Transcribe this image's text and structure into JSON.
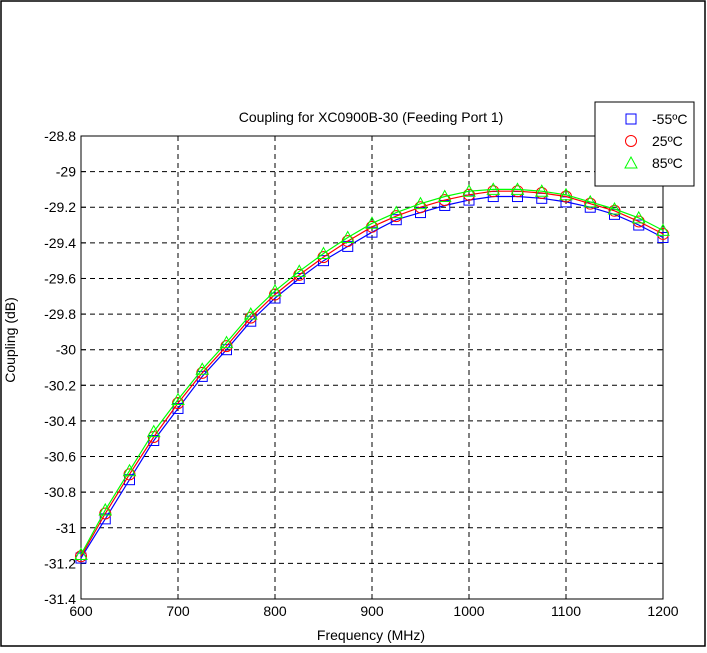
{
  "chart_data": {
    "type": "line",
    "title": "Coupling for XC0900B-30 (Feeding Port 1)",
    "xlabel": "Frequency (MHz)",
    "ylabel": "Coupling (dB)",
    "xlim": [
      600,
      1200
    ],
    "ylim": [
      -31.4,
      -28.8
    ],
    "x_ticks": [
      600,
      700,
      800,
      900,
      1000,
      1100,
      1200
    ],
    "x_tick_labels": [
      "600",
      "700",
      "800",
      "900",
      "1000",
      "1100",
      "1200"
    ],
    "y_ticks": [
      -28.8,
      -29,
      -29.2,
      -29.4,
      -29.6,
      -29.8,
      -30,
      -30.2,
      -30.4,
      -30.6,
      -30.8,
      -31,
      -31.2,
      -31.4
    ],
    "y_tick_labels": [
      "-28.8",
      "-29",
      "-29.2",
      "-29.4",
      "-29.6",
      "-29.8",
      "-30",
      "-30.2",
      "-30.4",
      "-30.6",
      "-30.8",
      "-31",
      "-31.2",
      "-31.4"
    ],
    "grid": true,
    "legend_position": "top-right",
    "x": [
      600,
      625,
      650,
      675,
      700,
      725,
      750,
      775,
      800,
      825,
      850,
      875,
      900,
      925,
      950,
      975,
      1000,
      1025,
      1050,
      1075,
      1100,
      1125,
      1150,
      1175,
      1200
    ],
    "series": [
      {
        "name": "-55ºC",
        "color": "#0000ff",
        "marker": "square",
        "values": [
          -31.17,
          -30.95,
          -30.73,
          -30.51,
          -30.33,
          -30.15,
          -30.0,
          -29.84,
          -29.71,
          -29.6,
          -29.5,
          -29.42,
          -29.34,
          -29.27,
          -29.23,
          -29.19,
          -29.16,
          -29.14,
          -29.14,
          -29.15,
          -29.17,
          -29.2,
          -29.24,
          -29.3,
          -29.37
        ]
      },
      {
        "name": "25ºC",
        "color": "#ff0000",
        "marker": "circle",
        "values": [
          -31.16,
          -30.92,
          -30.7,
          -30.49,
          -30.3,
          -30.13,
          -29.98,
          -29.82,
          -29.69,
          -29.58,
          -29.48,
          -29.39,
          -29.31,
          -29.25,
          -29.2,
          -29.16,
          -29.13,
          -29.11,
          -29.11,
          -29.12,
          -29.14,
          -29.18,
          -29.22,
          -29.28,
          -29.35
        ]
      },
      {
        "name": "85ºC",
        "color": "#00ff00",
        "marker": "triangle",
        "values": [
          -31.15,
          -30.9,
          -30.68,
          -30.46,
          -30.28,
          -30.11,
          -29.96,
          -29.8,
          -29.67,
          -29.56,
          -29.46,
          -29.37,
          -29.29,
          -29.23,
          -29.18,
          -29.14,
          -29.11,
          -29.1,
          -29.1,
          -29.11,
          -29.13,
          -29.17,
          -29.21,
          -29.26,
          -29.33
        ]
      }
    ]
  }
}
